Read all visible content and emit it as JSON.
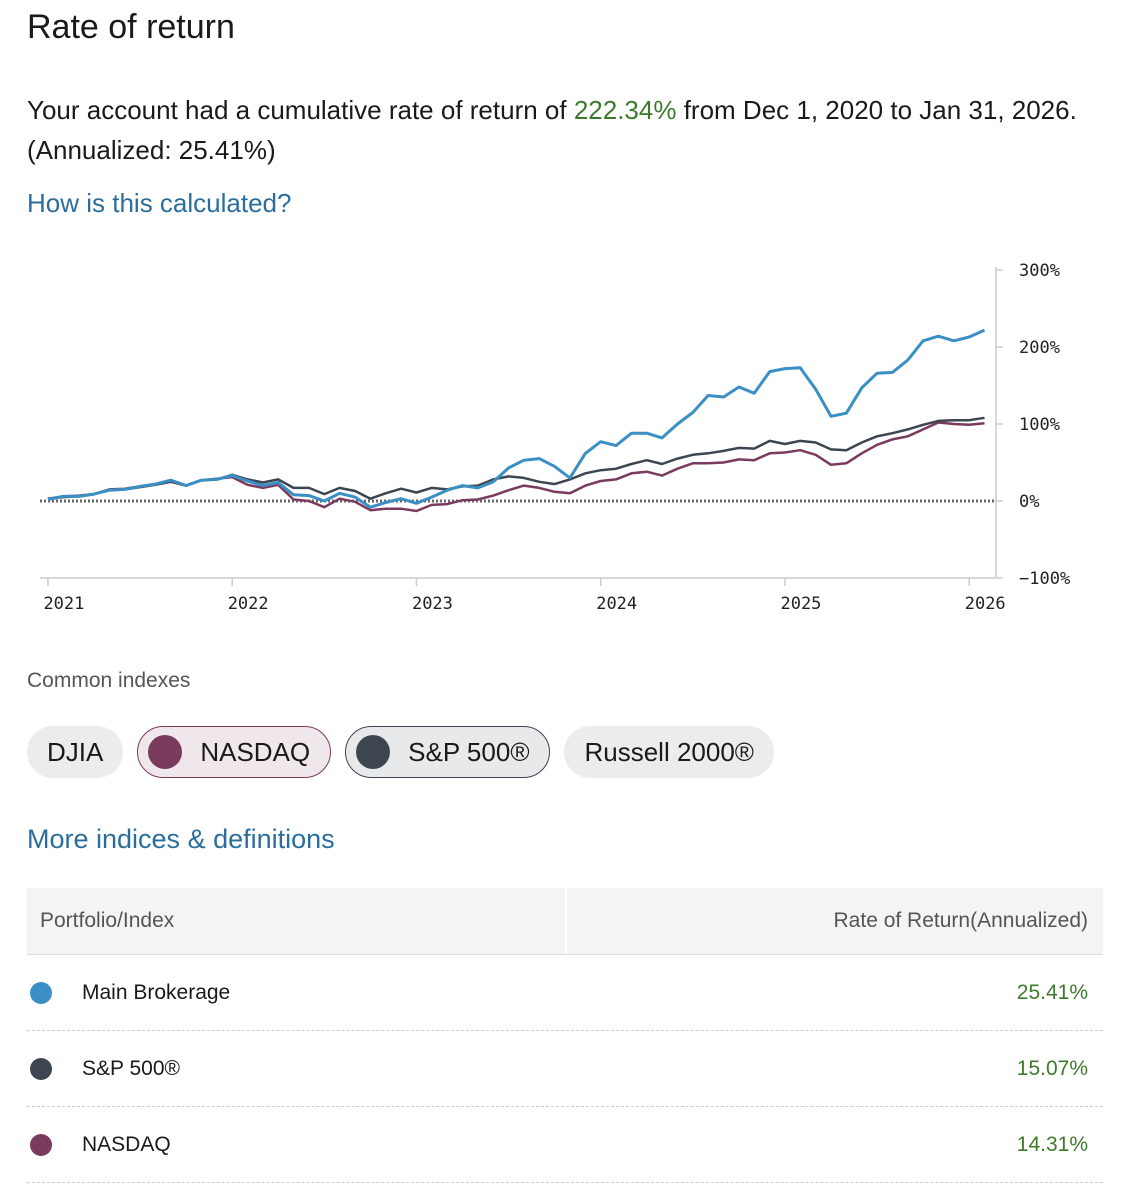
{
  "header": {
    "title": "Rate of return"
  },
  "summary": {
    "text_before": "Your account had a cumulative rate of return of ",
    "cumulative_return": "222.34%",
    "text_after": " from Dec 1, 2020 to Jan 31, 2026. (Annualized: 25.41%)"
  },
  "calc_link": "How is this calculated?",
  "chart_data": {
    "type": "line",
    "zero_line": true,
    "x": [
      2021,
      2021.083,
      2021.167,
      2021.25,
      2021.333,
      2021.417,
      2021.5,
      2021.583,
      2021.667,
      2021.75,
      2021.833,
      2021.917,
      2022,
      2022.083,
      2022.167,
      2022.25,
      2022.333,
      2022.417,
      2022.5,
      2022.583,
      2022.667,
      2022.75,
      2022.833,
      2022.917,
      2023,
      2023.083,
      2023.167,
      2023.25,
      2023.333,
      2023.417,
      2023.5,
      2023.583,
      2023.667,
      2023.75,
      2023.833,
      2023.917,
      2024,
      2024.083,
      2024.167,
      2024.25,
      2024.333,
      2024.417,
      2024.5,
      2024.583,
      2024.667,
      2024.75,
      2024.833,
      2024.917,
      2025,
      2025.083,
      2025.167,
      2025.25,
      2025.333,
      2025.417,
      2025.5,
      2025.583,
      2025.667,
      2025.75,
      2025.833,
      2025.917,
      2026,
      2026.083
    ],
    "xlim": [
      2020.957,
      2026.14
    ],
    "xticks": [
      2021,
      2022,
      2023,
      2024,
      2025,
      2026
    ],
    "ylim": [
      -100,
      300
    ],
    "yticks": [
      {
        "value": 300,
        "label": "300%"
      },
      {
        "value": 200,
        "label": "200%"
      },
      {
        "value": 100,
        "label": "100%"
      },
      {
        "value": 0,
        "label": "0%"
      },
      {
        "value": -100,
        "label": "−100%"
      }
    ],
    "series": [
      {
        "name": "Main Brokerage",
        "color": "#3a8fc5",
        "values": [
          2,
          6,
          6,
          9,
          14,
          15,
          19,
          22,
          27,
          20,
          27,
          28,
          33,
          26,
          20,
          24,
          8,
          7,
          0,
          10,
          5,
          -8,
          -2,
          3,
          -3,
          5,
          14,
          20,
          17,
          25,
          43,
          53,
          55,
          45,
          30,
          62,
          77,
          72,
          88,
          88,
          82,
          100,
          115,
          137,
          135,
          148,
          140,
          168,
          172,
          173,
          145,
          110,
          114,
          147,
          166,
          167,
          183,
          208,
          214,
          208,
          213,
          222
        ]
      },
      {
        "name": "S&P 500®",
        "color": "#3d4650",
        "values": [
          3,
          5,
          6,
          9,
          14,
          15,
          18,
          21,
          25,
          20,
          27,
          28,
          34,
          28,
          24,
          28,
          17,
          17,
          9,
          17,
          13,
          3,
          10,
          16,
          11,
          17,
          15,
          19,
          20,
          28,
          32,
          30,
          25,
          22,
          28,
          36,
          40,
          42,
          48,
          53,
          48,
          55,
          60,
          62,
          65,
          69,
          68,
          78,
          74,
          78,
          76,
          67,
          66,
          76,
          84,
          88,
          93,
          99,
          104,
          105,
          105,
          108
        ]
      },
      {
        "name": "NASDAQ",
        "color": "#7a3b5e",
        "values": [
          3,
          6,
          7,
          9,
          15,
          16,
          19,
          22,
          26,
          20,
          27,
          29,
          31,
          21,
          17,
          21,
          2,
          0,
          -8,
          3,
          -1,
          -12,
          -10,
          -10,
          -13,
          -5,
          -4,
          1,
          2,
          7,
          14,
          20,
          17,
          12,
          10,
          20,
          26,
          28,
          36,
          38,
          33,
          42,
          49,
          49,
          50,
          54,
          53,
          62,
          63,
          66,
          60,
          47,
          49,
          62,
          73,
          80,
          84,
          93,
          102,
          100,
          99,
          101
        ]
      }
    ]
  },
  "indexes": {
    "label": "Common indexes",
    "chips": [
      {
        "label": "DJIA",
        "selected": false
      },
      {
        "label": "NASDAQ",
        "selected": true,
        "color": "#7a3b5e"
      },
      {
        "label": "S&P 500®",
        "selected": true,
        "color": "#3d4650"
      },
      {
        "label": "Russell 2000®",
        "selected": false
      }
    ]
  },
  "more_link": "More indices & definitions",
  "table": {
    "columns": [
      "Portfolio/Index",
      "Rate of Return(Annualized)"
    ],
    "rows": [
      {
        "value": "25.41%"
      },
      {
        "value": "15.07%"
      },
      {
        "value": "14.31%"
      }
    ]
  }
}
